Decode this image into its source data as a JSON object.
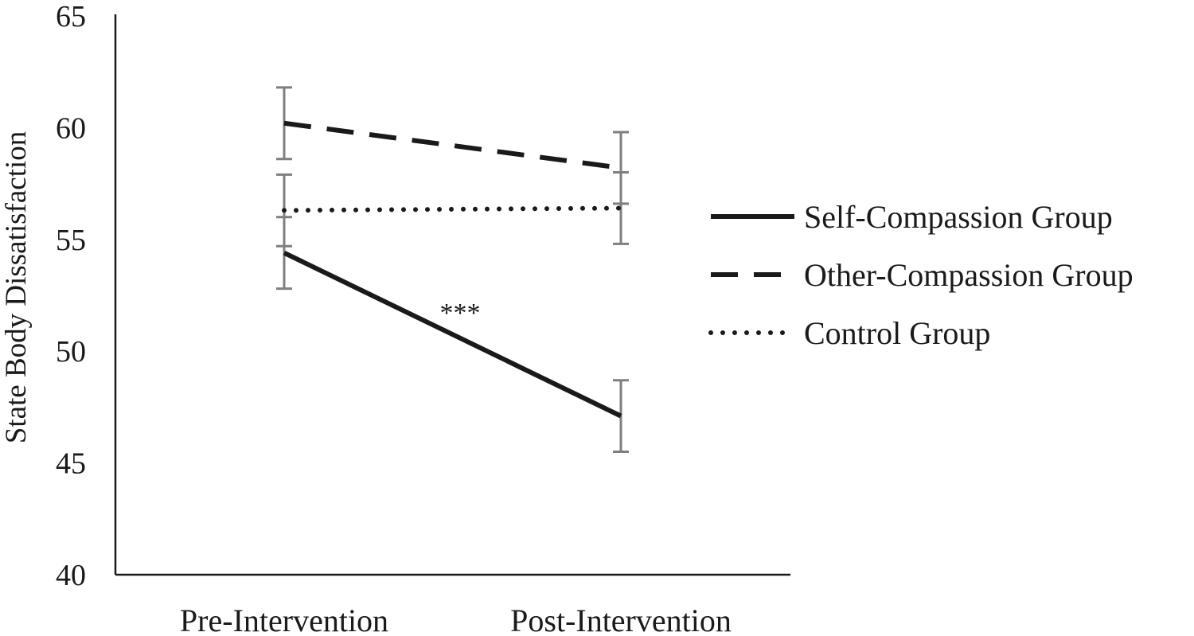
{
  "chart_data": {
    "type": "line",
    "title": "",
    "xlabel": "",
    "ylabel": "State Body Dissatisfaction",
    "categories": [
      "Pre-Intervention",
      "Post-Intervention"
    ],
    "ylim": [
      40,
      65
    ],
    "yticks": [
      40,
      45,
      50,
      55,
      60,
      65
    ],
    "grid": false,
    "legend_position": "right",
    "series": [
      {
        "name": "Self-Compassion Group",
        "line_style": "solid",
        "color": "#1a1a1a",
        "values": [
          54.4,
          47.1
        ],
        "error": [
          1.6,
          1.6
        ]
      },
      {
        "name": "Other-Compassion Group",
        "line_style": "dashed",
        "color": "#1a1a1a",
        "values": [
          60.2,
          58.2
        ],
        "error": [
          1.6,
          1.6
        ]
      },
      {
        "name": "Control Group",
        "line_style": "dotted",
        "color": "#1a1a1a",
        "values": [
          56.3,
          56.4
        ],
        "error": [
          1.6,
          1.6
        ]
      }
    ],
    "error_bar_color": "#7f7f7f",
    "annotations": [
      {
        "text": "***",
        "series": "Self-Compassion Group",
        "segment": 0
      }
    ]
  }
}
